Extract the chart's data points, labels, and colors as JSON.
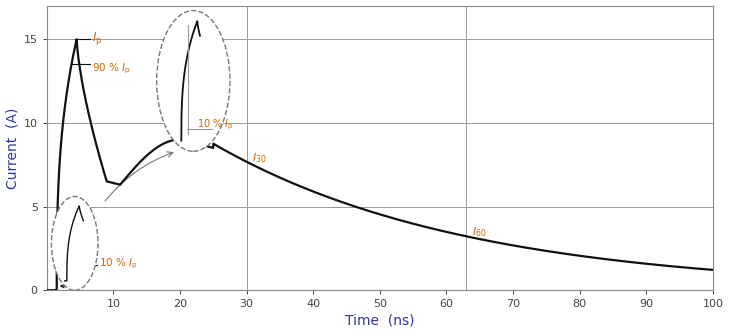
{
  "xlabel": "Time  (ns)",
  "ylabel": "Current  (A)",
  "xlim": [
    0,
    100
  ],
  "ylim": [
    0,
    17
  ],
  "yticks": [
    5,
    10,
    15
  ],
  "xticks": [
    10,
    20,
    30,
    40,
    50,
    60,
    70,
    80,
    90,
    100
  ],
  "grid_color": "#999999",
  "line_color": "#111111",
  "orange": "#cc6600",
  "blue": "#3333aa",
  "bg_color": "#ffffff",
  "t30": 30,
  "t60": 63,
  "Ip": 15.0
}
